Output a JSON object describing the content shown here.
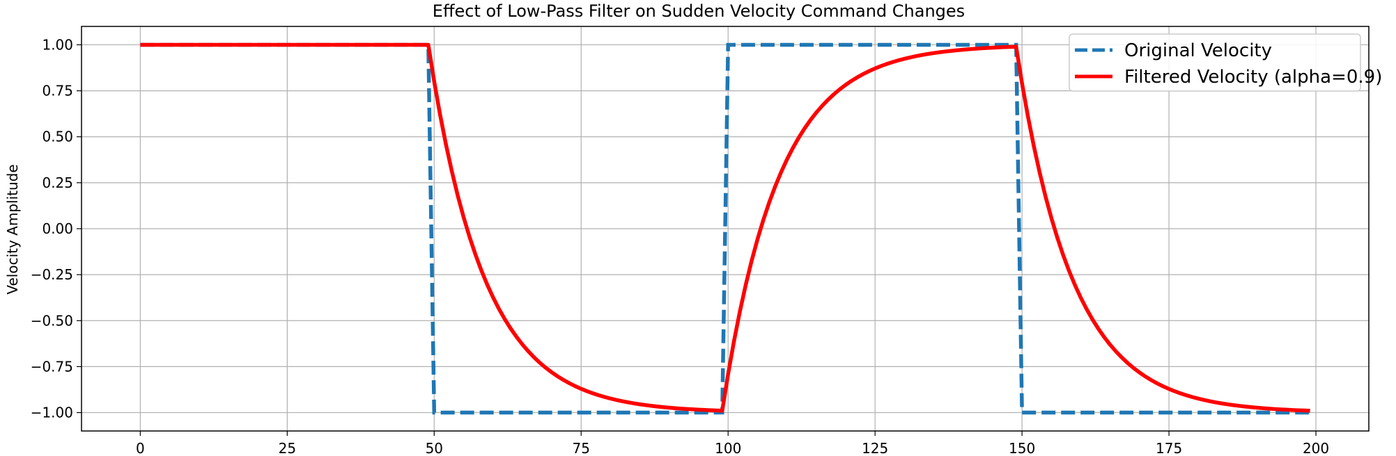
{
  "chart_data": {
    "type": "line",
    "title": "Effect of Low-Pass Filter on Sudden Velocity Command Changes",
    "xlabel": "",
    "ylabel": "Velocity Amplitude",
    "xlim": [
      -10,
      209
    ],
    "ylim": [
      -1.1,
      1.1
    ],
    "xticks": [
      0,
      25,
      50,
      75,
      100,
      125,
      150,
      175,
      200
    ],
    "yticks": [
      1.0,
      0.75,
      0.5,
      0.25,
      0.0,
      -0.25,
      -0.5,
      -0.75,
      -1.0
    ],
    "ytick_labels": [
      "1.00",
      "0.75",
      "0.50",
      "0.25",
      "0.00",
      "−0.25",
      "−0.50",
      "−0.75",
      "−1.00"
    ],
    "grid": true,
    "legend_position": "top-right",
    "series": [
      {
        "name": "Original Velocity",
        "style": "dashed",
        "color": "#1f77b4",
        "definition": "square wave, +1 for t<50, -1 for 50<=t<100, +1 for 100<=t<150, -1 for 150<=t<200",
        "x_start": 0,
        "x_end": 199,
        "segments": [
          {
            "from": 0,
            "to": 49,
            "value": 1
          },
          {
            "from": 50,
            "to": 99,
            "value": -1
          },
          {
            "from": 100,
            "to": 149,
            "value": 1
          },
          {
            "from": 150,
            "to": 199,
            "value": -1
          }
        ]
      },
      {
        "name": "Filtered Velocity (alpha=0.9)",
        "style": "solid",
        "color": "#ff0000",
        "definition": "y[n] = alpha*y[n-1] + (1-alpha)*x[n], y[0]=x[0]",
        "alpha": 0.9
      }
    ]
  }
}
